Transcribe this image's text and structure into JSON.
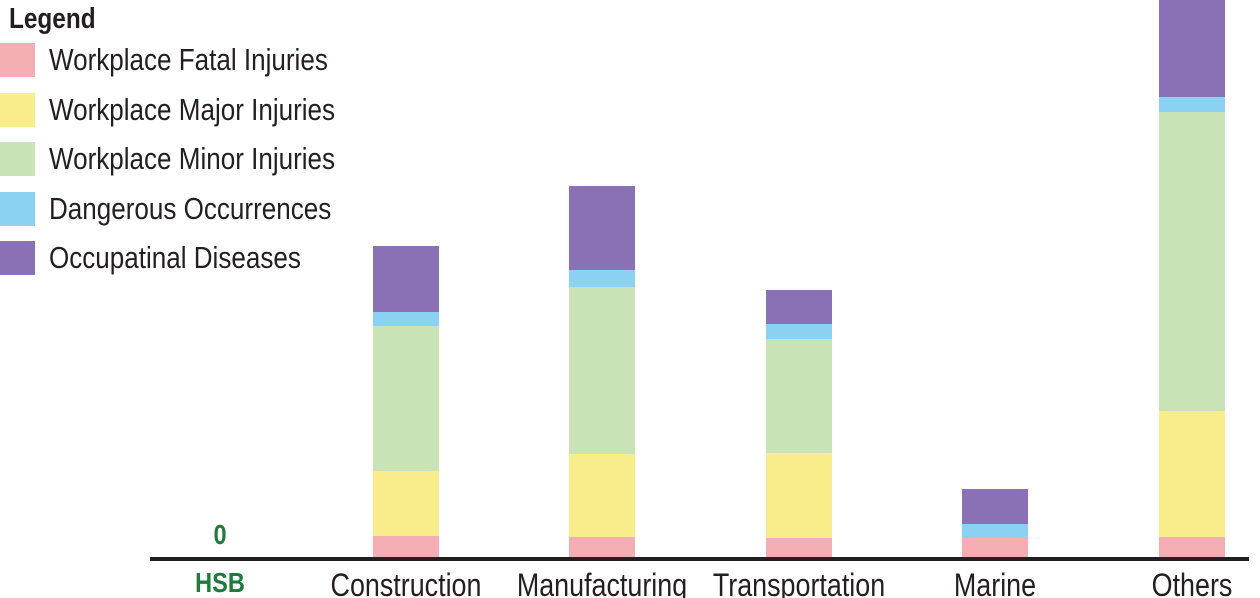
{
  "legend": {
    "title": "Legend",
    "items": [
      {
        "label": "Workplace Fatal Injuries",
        "color": "#f5adb4"
      },
      {
        "label": "Workplace Major Injuries",
        "color": "#f8ed8a"
      },
      {
        "label": "Workplace Minor Injuries",
        "color": "#c9e3b7"
      },
      {
        "label": "Dangerous Occurrences",
        "color": "#8bd2f2"
      },
      {
        "label": "Occupatinal Diseases",
        "color": "#8a70b5"
      }
    ]
  },
  "zero_label": "0",
  "colors": {
    "fatal": "#f5adb4",
    "major": "#f8ed8a",
    "minor": "#c9e3b7",
    "dangerous": "#8bd2f2",
    "diseases": "#8a70b5",
    "axis": "#231F20",
    "text": "#231F20",
    "hsb_text": "#1E7B3B"
  },
  "chart_data": {
    "type": "bar",
    "stacked": true,
    "categories": [
      "HSB",
      "Construction",
      "Manufacturing",
      "Transportation",
      "Marine",
      "Others"
    ],
    "series": [
      {
        "name": "Workplace Fatal Injuries",
        "color": "#f5adb4",
        "values": [
          0,
          21,
          20,
          19,
          19,
          20
        ]
      },
      {
        "name": "Workplace Major Injuries",
        "color": "#f8ed8a",
        "values": [
          0,
          65,
          83,
          85,
          0,
          126
        ]
      },
      {
        "name": "Workplace Minor Injuries",
        "color": "#c9e3b7",
        "values": [
          0,
          145,
          167,
          114,
          0,
          299
        ]
      },
      {
        "name": "Dangerous Occurrences",
        "color": "#8bd2f2",
        "values": [
          0,
          14,
          17,
          15,
          14,
          15
        ]
      },
      {
        "name": "Occupatinal Diseases",
        "color": "#8a70b5",
        "values": [
          0,
          66,
          84,
          34,
          35,
          98
        ]
      }
    ],
    "title": "",
    "xlabel": "",
    "ylabel": "",
    "ylim": [
      0,
      557
    ],
    "annotations": [
      {
        "text": "0",
        "category": "HSB"
      }
    ],
    "legend_position": "top-left",
    "grid": false
  }
}
